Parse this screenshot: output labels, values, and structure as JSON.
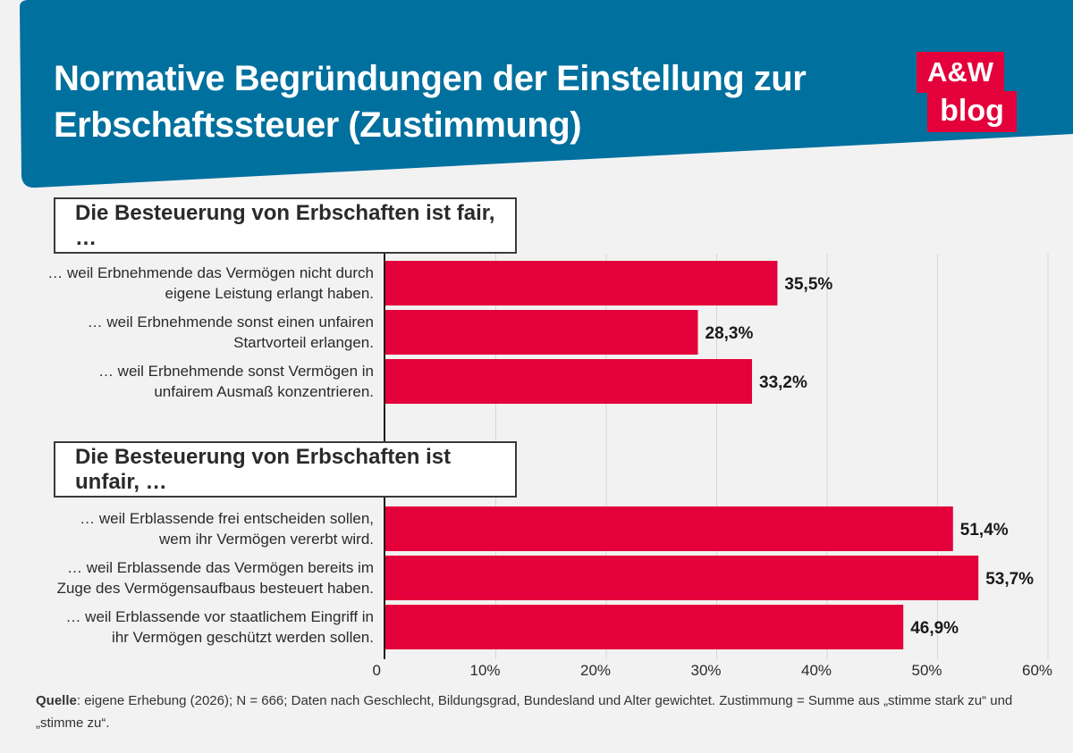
{
  "title_line1": "Normative Begründungen der Einstellung zur",
  "title_line2": "Erbschaftssteuer (Zustimmung)",
  "logo": {
    "top": "A&W",
    "bottom": "blog"
  },
  "colors": {
    "header": "#00709e",
    "bar": "#e4003a",
    "logo": "#e4003a",
    "background": "#f2f2f2"
  },
  "source": {
    "label": "Quelle",
    "text": ": eigene Erhebung (2026); N = 666; Daten nach Geschlecht, Bildungsgrad, Bundesland und Alter gewichtet. Zustimmung = Summe aus „stimme stark zu“ und „stimme zu“."
  },
  "chart_data": {
    "type": "bar",
    "orientation": "horizontal",
    "xlim": [
      0,
      60
    ],
    "ticks": [
      "0",
      "10%",
      "20%",
      "30%",
      "40%",
      "50%",
      "60%"
    ],
    "tick_values": [
      0,
      10,
      20,
      30,
      40,
      50,
      60
    ],
    "grid": true,
    "groups": [
      {
        "title": "Die Besteuerung von Erbschaften ist fair, …",
        "items": [
          {
            "label_line1": "… weil Erbnehmende das Vermögen nicht durch",
            "label_line2": "eigene Leistung erlangt haben.",
            "value": 35.5,
            "value_label": "35,5%"
          },
          {
            "label_line1": "… weil Erbnehmende sonst einen unfairen",
            "label_line2": "Startvorteil erlangen.",
            "value": 28.3,
            "value_label": "28,3%"
          },
          {
            "label_line1": "… weil Erbnehmende sonst Vermögen in",
            "label_line2": "unfairem Ausmaß konzentrieren.",
            "value": 33.2,
            "value_label": "33,2%"
          }
        ]
      },
      {
        "title": "Die Besteuerung von Erbschaften ist unfair, …",
        "items": [
          {
            "label_line1": "… weil Erblassende frei entscheiden sollen,",
            "label_line2": "wem ihr Vermögen vererbt wird.",
            "value": 51.4,
            "value_label": "51,4%"
          },
          {
            "label_line1": "… weil Erblassende das Vermögen bereits im",
            "label_line2": "Zuge des Vermögensaufbaus besteuert haben.",
            "value": 53.7,
            "value_label": "53,7%"
          },
          {
            "label_line1": "… weil Erblassende vor staatlichem Eingriff in",
            "label_line2": "ihr Vermögen geschützt werden sollen.",
            "value": 46.9,
            "value_label": "46,9%"
          }
        ]
      }
    ]
  }
}
